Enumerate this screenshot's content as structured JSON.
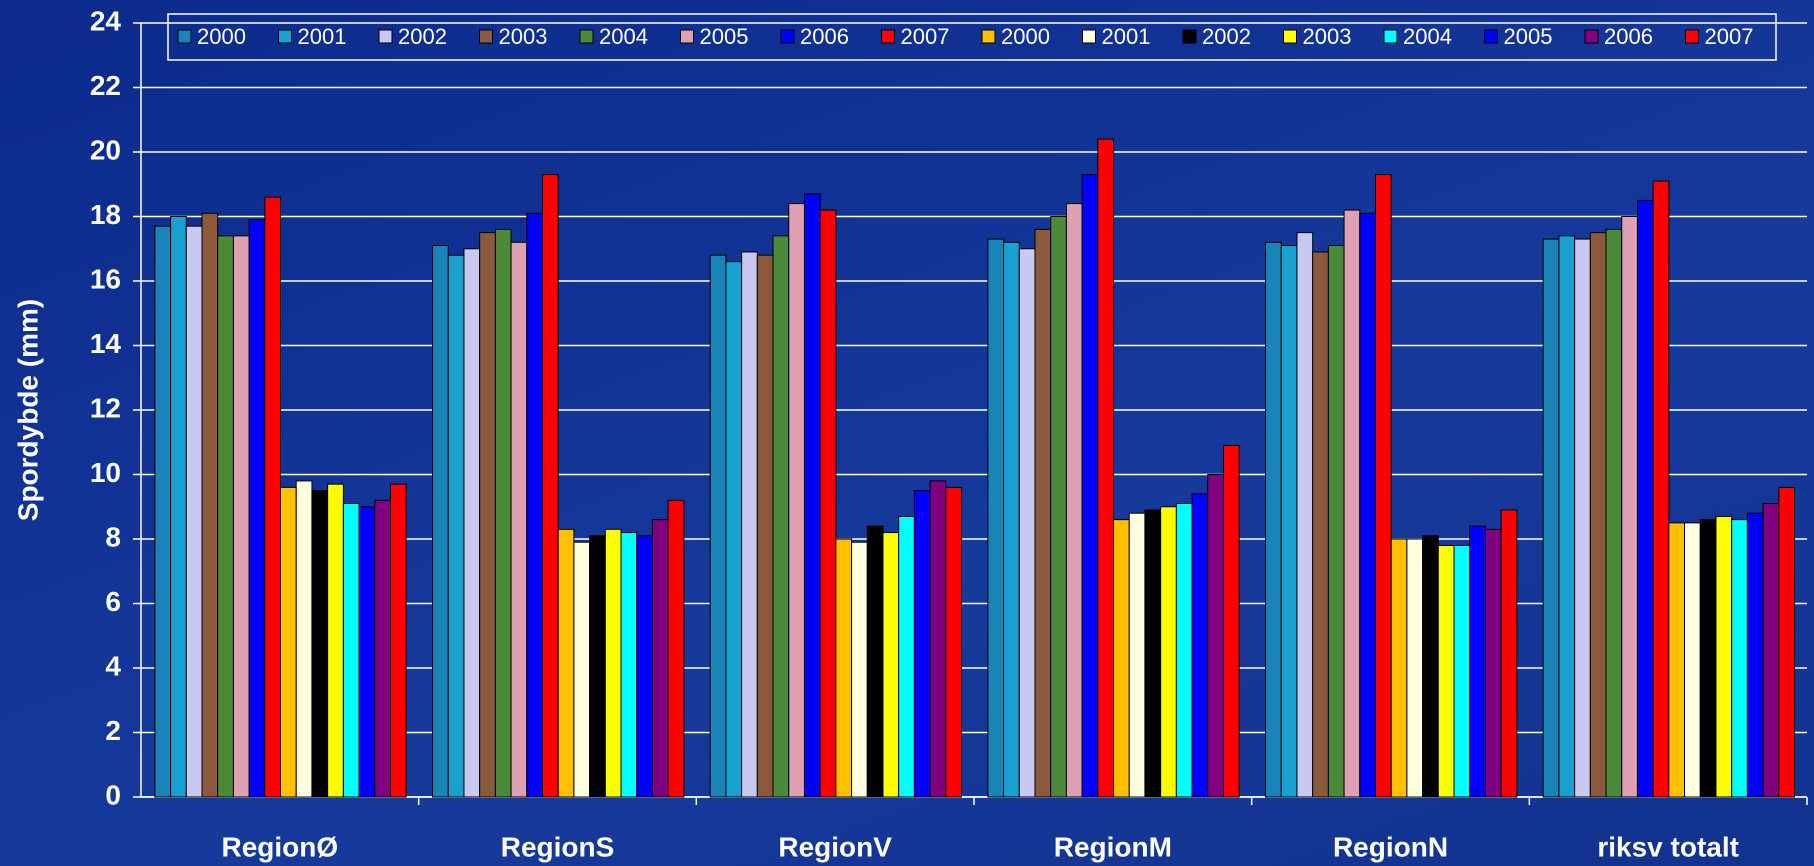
{
  "chart_data": {
    "type": "bar",
    "y_label": "Spordybde (mm)",
    "categories": [
      "RegionØ",
      "RegionS",
      "RegionV",
      "RegionM",
      "RegionN",
      "riksv totalt"
    ],
    "series": [
      {
        "name": "2000",
        "color": "#1a84b8",
        "values": [
          17.7,
          17.1,
          16.8,
          17.3,
          17.2,
          17.3
        ]
      },
      {
        "name": "2001",
        "color": "#1aa0d0",
        "values": [
          18.0,
          16.8,
          16.6,
          17.2,
          17.1,
          17.4
        ]
      },
      {
        "name": "2002",
        "color": "#c8c8f0",
        "values": [
          17.7,
          17.0,
          16.9,
          17.0,
          17.5,
          17.3
        ]
      },
      {
        "name": "2003",
        "color": "#8b5a3c",
        "values": [
          18.1,
          17.5,
          16.8,
          17.6,
          16.9,
          17.5
        ]
      },
      {
        "name": "2004",
        "color": "#4a8a3a",
        "values": [
          17.4,
          17.6,
          17.4,
          18.0,
          17.1,
          17.6
        ]
      },
      {
        "name": "2005",
        "color": "#e0a0b4",
        "values": [
          17.4,
          17.2,
          18.4,
          18.4,
          18.2,
          18.0
        ]
      },
      {
        "name": "2006",
        "color": "#0000ff",
        "values": [
          17.9,
          18.1,
          18.7,
          19.3,
          18.1,
          18.5
        ]
      },
      {
        "name": "2007",
        "color": "#ff0000",
        "values": [
          18.6,
          19.3,
          18.2,
          20.4,
          19.3,
          19.1
        ]
      },
      {
        "name": "2000",
        "color": "#ffc000",
        "values": [
          9.6,
          8.3,
          8.0,
          8.6,
          8.0,
          8.5
        ]
      },
      {
        "name": "2001",
        "color": "#ffffe0",
        "values": [
          9.8,
          7.9,
          7.9,
          8.8,
          8.0,
          8.5
        ]
      },
      {
        "name": "2002",
        "color": "#000000",
        "values": [
          9.5,
          8.1,
          8.4,
          8.9,
          8.1,
          8.6
        ]
      },
      {
        "name": "2003",
        "color": "#ffff00",
        "values": [
          9.7,
          8.3,
          8.2,
          9.0,
          7.8,
          8.7
        ]
      },
      {
        "name": "2004",
        "color": "#00ffff",
        "values": [
          9.1,
          8.2,
          8.7,
          9.1,
          7.8,
          8.6
        ]
      },
      {
        "name": "2005",
        "color": "#0000ff",
        "values": [
          9.0,
          8.1,
          9.5,
          9.4,
          8.4,
          8.8
        ]
      },
      {
        "name": "2006",
        "color": "#800080",
        "values": [
          9.2,
          8.6,
          9.8,
          10.0,
          8.3,
          9.1
        ]
      },
      {
        "name": "2007",
        "color": "#ff0000",
        "values": [
          9.7,
          9.2,
          9.6,
          10.9,
          8.9,
          9.6
        ]
      }
    ],
    "ylim": [
      0,
      24
    ],
    "yticks": [
      0,
      2,
      4,
      6,
      8,
      10,
      12,
      14,
      16,
      18,
      20,
      22,
      24
    ],
    "grid": true,
    "legend": "top"
  }
}
